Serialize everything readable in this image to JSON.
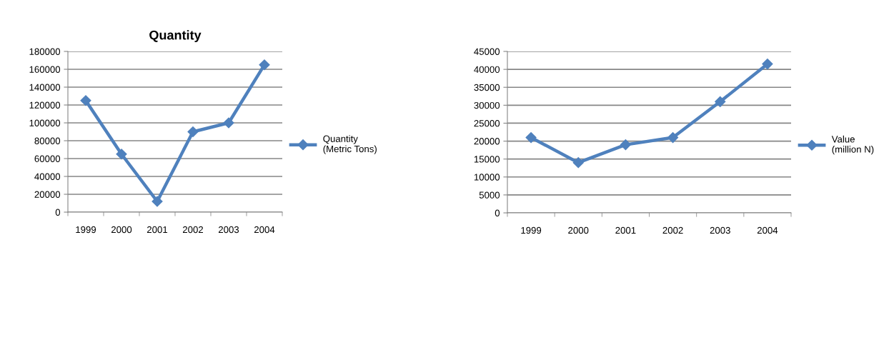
{
  "chart_data": [
    {
      "type": "line",
      "title": "Quantity",
      "categories": [
        "1999",
        "2000",
        "2001",
        "2002",
        "2003",
        "2004"
      ],
      "series": [
        {
          "name": "Quantity\n(Metric Tons)",
          "color": "#4f81bd",
          "values": [
            125000,
            65000,
            12000,
            90000,
            100000,
            165000
          ]
        }
      ],
      "ylim": [
        0,
        180000
      ],
      "yticks": [
        0,
        20000,
        40000,
        60000,
        80000,
        100000,
        120000,
        140000,
        160000,
        180000
      ],
      "grid": "y",
      "legend": "right",
      "marker": "diamond",
      "line_style": "solid"
    },
    {
      "type": "line",
      "categories": [
        "1999",
        "2000",
        "2001",
        "2002",
        "2003",
        "2004"
      ],
      "series": [
        {
          "name": "Value\n(million N)",
          "color": "#4f81bd",
          "values": [
            21000,
            14000,
            19000,
            21000,
            31000,
            41500
          ]
        }
      ],
      "ylim": [
        0,
        45000
      ],
      "yticks": [
        0,
        5000,
        10000,
        15000,
        20000,
        25000,
        30000,
        35000,
        40000,
        45000
      ],
      "grid": "y",
      "legend": "right",
      "marker": "diamond",
      "line_style": "solid"
    }
  ]
}
